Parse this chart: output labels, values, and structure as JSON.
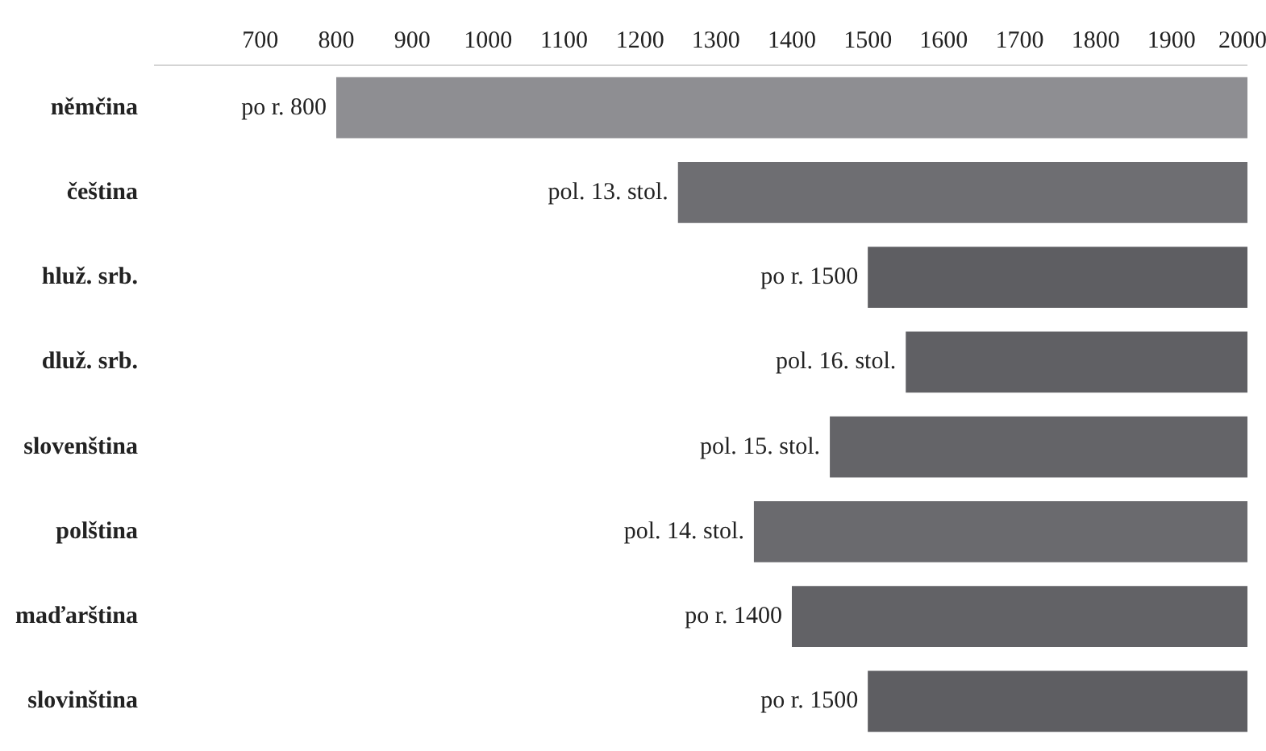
{
  "chart_data": {
    "type": "bar",
    "orientation": "horizontal",
    "categories": [
      "němčina",
      "čeština",
      "hluž. srb.",
      "dluž. srb.",
      "slovenština",
      "polština",
      "maďarština",
      "slovinština"
    ],
    "base": [
      800,
      1250,
      1500,
      1550,
      1450,
      1350,
      1400,
      1500
    ],
    "values": [
      1200,
      750,
      500,
      450,
      550,
      650,
      600,
      500
    ],
    "annotations": [
      {
        "text": "po r. 800",
        "x": 800,
        "y": "němčina"
      },
      {
        "text": "pol. 13. stol.",
        "x": 1250,
        "y": "čeština"
      },
      {
        "text": "po r. 1500",
        "x": 1500,
        "y": "hluž. srb."
      },
      {
        "text": "pol. 16. stol.",
        "x": 1550,
        "y": "dluž. srb."
      },
      {
        "text": "pol. 15. stol.",
        "x": 1450,
        "y": "slovenština"
      },
      {
        "text": "pol. 14. stol.",
        "x": 1350,
        "y": "polština"
      },
      {
        "text": "po r. 1400",
        "x": 1400,
        "y": "maďarština"
      },
      {
        "text": "po r. 1500",
        "x": 1500,
        "y": "slovinština"
      }
    ],
    "colors": [
      "#8e8e92",
      "#6e6e72",
      "#5e5e62",
      "#606064",
      "#646468",
      "#6a6a6e",
      "#626266",
      "#5e5e62"
    ],
    "xlim": [
      560,
      2000
    ],
    "xticks": [
      700,
      800,
      900,
      1000,
      1100,
      1200,
      1300,
      1400,
      1500,
      1600,
      1700,
      1800,
      1900,
      2000
    ],
    "grid": false
  }
}
